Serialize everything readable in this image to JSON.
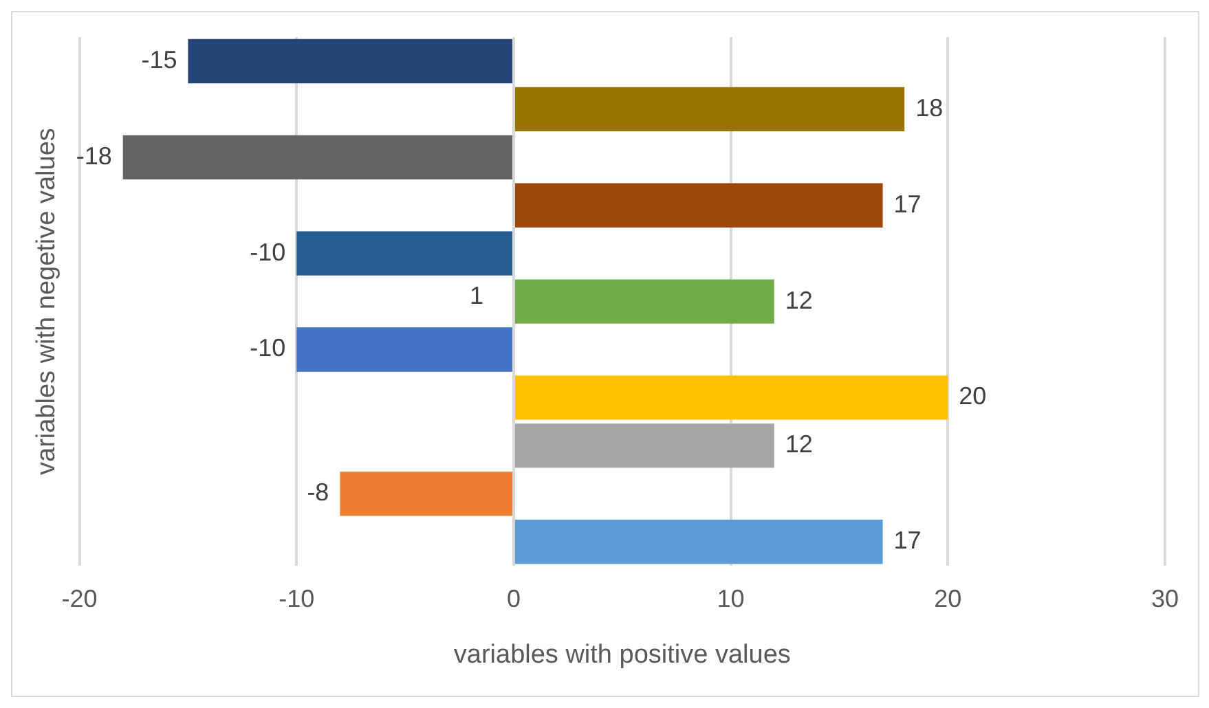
{
  "chart_data": {
    "type": "bar",
    "orientation": "horizontal",
    "xlabel": "variables with positive values",
    "ylabel": "variables with negetive values",
    "categories": [
      null,
      null,
      null,
      null,
      null,
      null,
      null,
      null,
      null,
      null,
      null
    ],
    "values": [
      -15,
      18,
      -18,
      17,
      -10,
      12,
      -10,
      20,
      12,
      -8,
      17
    ],
    "colors": [
      "#264478",
      "#997300",
      "#636363",
      "#9e480e",
      "#255e91",
      "#70ad47",
      "#4472c4",
      "#ffc000",
      "#a5a5a5",
      "#ed7d31",
      "#5b9bd5"
    ],
    "xlim": [
      -20,
      30
    ],
    "xticks": [
      -20,
      -10,
      0,
      10,
      20,
      30
    ],
    "grid": "x",
    "data_labels": true,
    "legend": false,
    "annotations": [
      "1"
    ]
  }
}
